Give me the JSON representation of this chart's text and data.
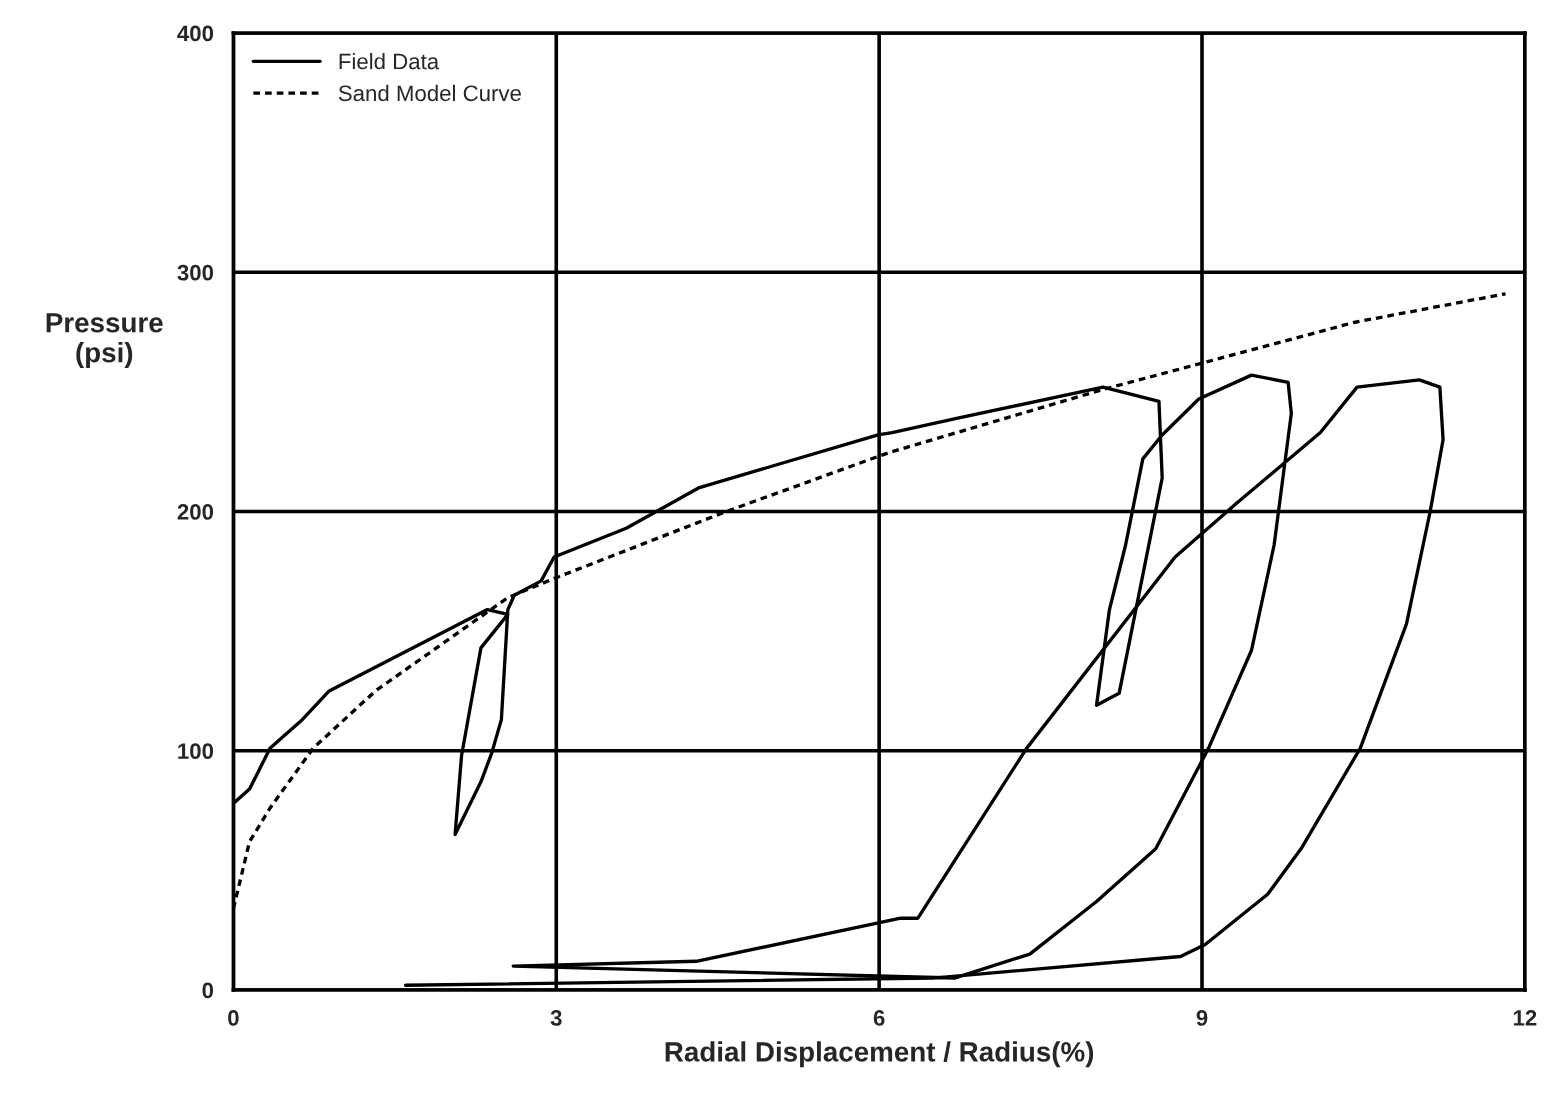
{
  "chart_data": {
    "type": "line",
    "xlabel": "Radial Displacement / Radius(%)",
    "ylabel": "Pressure\n(psi)",
    "xlim": [
      0,
      12
    ],
    "ylim": [
      0,
      400
    ],
    "xticks": [
      0,
      3,
      6,
      9,
      12
    ],
    "yticks": [
      0,
      100,
      200,
      300,
      400
    ],
    "grid": true,
    "legend": "top left",
    "series": [
      {
        "name": "Field Data",
        "color": "#000000",
        "line_style": "solid",
        "x": [
          0,
          0.15,
          0.34,
          0.64,
          0.89,
          2.36,
          2.55,
          2.3,
          2.12,
          2.06,
          2.3,
          2.4,
          2.49,
          2.55,
          2.61,
          2.86,
          2.98,
          3.65,
          4.33,
          5.99,
          6.12,
          6.73,
          8.08,
          8.6,
          8.63,
          8.23,
          8.02,
          8.14,
          8.29,
          8.45,
          8.63,
          8.97,
          9.46,
          9.8,
          9.83,
          9.67,
          9.46,
          9.06,
          8.57,
          8.02,
          7.4,
          6.7,
          2.6,
          4.3,
          6.2,
          6.36,
          7.37,
          8.75,
          9.31,
          10.1,
          10.44,
          11.02,
          11.21,
          11.24,
          11.12,
          10.9,
          10.47,
          9.92,
          9.61,
          9.03,
          8.8,
          6.5,
          1.6
        ],
        "values": [
          78,
          84,
          101,
          113,
          125,
          159,
          157,
          143,
          98,
          65,
          87,
          99,
          113,
          159,
          165,
          171,
          181,
          193,
          210,
          232,
          233,
          239,
          252,
          246,
          214,
          124,
          119,
          159,
          186,
          222,
          232,
          247,
          257,
          254,
          241,
          186,
          142,
          101,
          59,
          37,
          15,
          5,
          10,
          12,
          30,
          30,
          101,
          181,
          203,
          233,
          252,
          255,
          252,
          230,
          200,
          153,
          101,
          59,
          40,
          19,
          14,
          5,
          2
        ]
      },
      {
        "name": "Sand Model Curve",
        "color": "#000000",
        "line_style": "dashed",
        "x": [
          0,
          0.15,
          0.34,
          0.74,
          1.32,
          2.55,
          2.98,
          4.58,
          5.99,
          6.12,
          8.08,
          9,
          10.41,
          11.82
        ],
        "values": [
          34,
          62,
          76,
          101,
          125,
          164,
          172,
          200,
          223,
          225,
          251,
          262,
          279,
          291
        ]
      }
    ]
  }
}
